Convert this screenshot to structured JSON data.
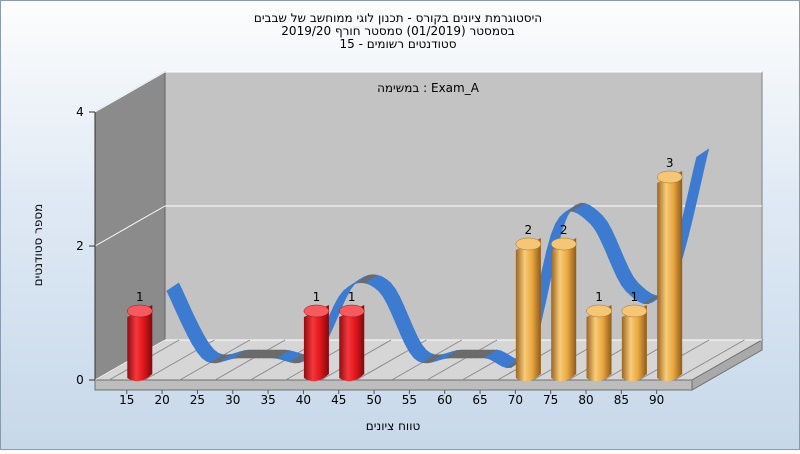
{
  "chart_data": {
    "type": "bar",
    "title_lines": [
      "היסטוגרמת ציונים בקורס - תכנון לוגי ממוחשב של שבבים",
      "בסמסטר  (01/2019)  סמסטר חורף 2019/20",
      "סטודנטים רשומים - 15"
    ],
    "legend": "במשימה : Exam_A",
    "xlabel": "טווח ציונים",
    "ylabel": "מספר סטודנטים",
    "categories": [
      "15",
      "20",
      "25",
      "30",
      "35",
      "40",
      "45",
      "50",
      "55",
      "60",
      "65",
      "70",
      "75",
      "80",
      "85",
      "90"
    ],
    "values": [
      1,
      0,
      0,
      0,
      0,
      1,
      1,
      0,
      0,
      0,
      0,
      2,
      2,
      1,
      1,
      3
    ],
    "bar_colors": [
      "red",
      "none",
      "none",
      "none",
      "none",
      "red",
      "red",
      "none",
      "none",
      "none",
      "none",
      "orange",
      "orange",
      "orange",
      "orange",
      "orange"
    ],
    "yticks": [
      0,
      2,
      4
    ],
    "ylim": [
      0,
      4
    ],
    "trend_line": true,
    "colors": {
      "red": "#e0161b",
      "orange": "#e9a740",
      "trend_gray": "#6b6b6b",
      "trend_blue": "#3c7bd0",
      "wall": "#c3c3c3",
      "side_wall": "#8b8b8b"
    }
  }
}
